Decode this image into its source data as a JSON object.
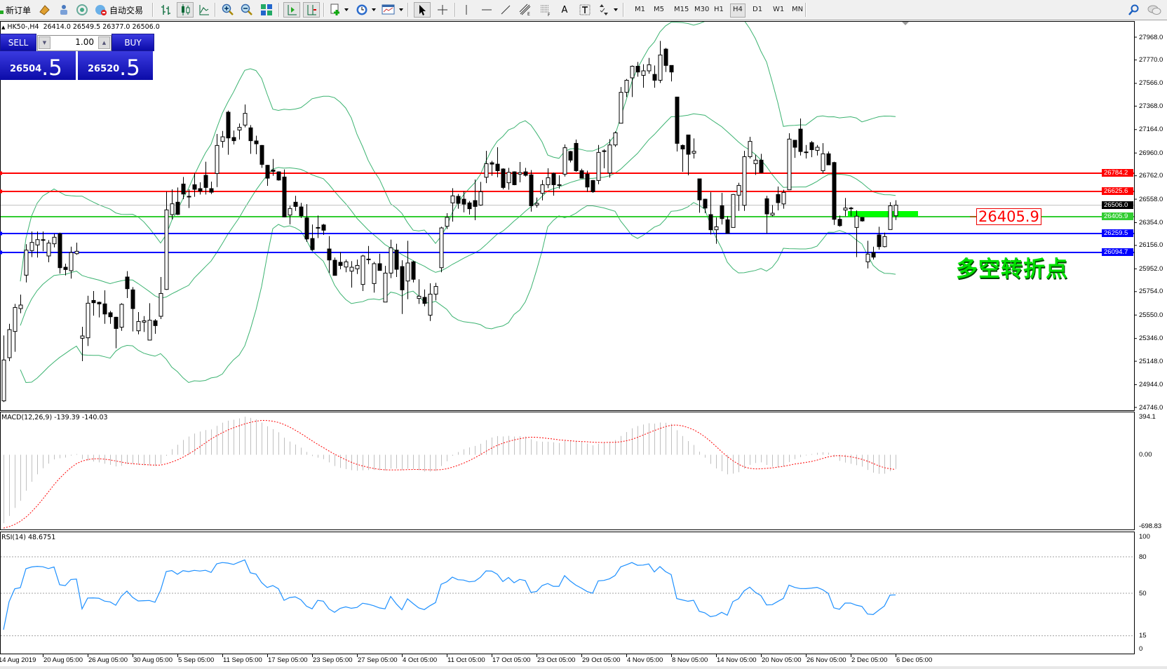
{
  "toolbar": {
    "new_order": "新订单",
    "auto_trading": "自动交易",
    "timeframes": [
      "M1",
      "M5",
      "M15",
      "M30",
      "H1",
      "H4",
      "D1",
      "W1",
      "MN"
    ],
    "active_timeframe": "H4"
  },
  "header": {
    "symbol": "HK50-,H4",
    "ohlc": "26414.0 26549.5 26377.0 26506.0"
  },
  "trade_panel": {
    "sell_label": "SELL",
    "buy_label": "BUY",
    "lot": "1.00",
    "sell_main": "26504",
    "sell_frac": ".5",
    "buy_main": "26520",
    "buy_frac": ".5"
  },
  "annotations": {
    "price_box": "26405.9",
    "note": "多空转折点"
  },
  "colors": {
    "bollinger": "#3cb371",
    "rsi": "#1e90ff",
    "macd_hist": "#c0c0c0",
    "signal": "#ff0000",
    "resistance": "#ff0000",
    "support": "#0000ff",
    "pivot": "#32cd32",
    "panel_blue": "#1414c0"
  },
  "chart_data": {
    "type": "candlestick",
    "title": "",
    "price_ticks": [
      "27968.0",
      "27770.0",
      "27566.0",
      "27368.0",
      "27164.0",
      "26960.0",
      "26762.0",
      "26558.0",
      "26354.0",
      "26156.0",
      "25952.0",
      "25754.0",
      "25550.0",
      "25346.0",
      "25148.0",
      "24944.0",
      "24746.0"
    ],
    "ylim": [
      24746,
      27968
    ],
    "current_price": {
      "value": 26506.0,
      "label": "26506.0"
    },
    "horizontal_lines": [
      {
        "value": 26784.2,
        "label": "26784.2",
        "color": "#ff0000"
      },
      {
        "value": 26625.6,
        "label": "26625.6",
        "color": "#ff0000"
      },
      {
        "value": 26405.9,
        "label": "26405.9",
        "color": "#32cd32"
      },
      {
        "value": 26259.5,
        "label": "26259.5",
        "color": "#0000ff"
      },
      {
        "value": 26094.7,
        "label": "26094.7",
        "color": "#0000ff"
      }
    ],
    "x_labels": [
      "14 Aug 2019",
      "20 Aug 05:00",
      "26 Aug 05:00",
      "30 Aug 05:00",
      "5 Sep 05:00",
      "11 Sep 05:00",
      "17 Sep 05:00",
      "23 Sep 05:00",
      "27 Sep 05:00",
      "4 Oct 05:00",
      "11 Oct 05:00",
      "17 Oct 05:00",
      "23 Oct 05:00",
      "29 Oct 05:00",
      "4 Nov 05:00",
      "8 Nov 05:00",
      "14 Nov 05:00",
      "20 Nov 05:00",
      "26 Nov 05:00",
      "2 Dec 05:00",
      "6 Dec 05:00"
    ],
    "ohlc_fields": [
      "open",
      "high",
      "low",
      "close"
    ],
    "candles": [
      [
        24803,
        25372,
        24793,
        25159
      ],
      [
        25179,
        25474,
        25149,
        25423
      ],
      [
        25407,
        25647,
        25230,
        25616
      ],
      [
        25606,
        25728,
        25566,
        25637
      ],
      [
        25897,
        26166,
        25834,
        26115
      ],
      [
        26111,
        26277,
        26054,
        26182
      ],
      [
        26160,
        26277,
        26050,
        26206
      ],
      [
        26206,
        26277,
        26105,
        26200
      ],
      [
        26064,
        26202,
        26009,
        26176
      ],
      [
        26170,
        26257,
        26139,
        26227
      ],
      [
        26257,
        26267,
        25911,
        25962
      ],
      [
        25966,
        25997,
        25895,
        25946
      ],
      [
        25936,
        26145,
        25867,
        26094
      ],
      [
        26084,
        26180,
        26074,
        26105
      ],
      [
        25348,
        25448,
        25149,
        25368
      ],
      [
        25352,
        25718,
        25281,
        25653
      ],
      [
        25677,
        25759,
        25545,
        25657
      ],
      [
        25661,
        25667,
        25529,
        25647
      ],
      [
        25647,
        25765,
        25474,
        25559
      ],
      [
        25570,
        25586,
        25474,
        25535
      ],
      [
        25531,
        25535,
        25261,
        25433
      ],
      [
        25444,
        25653,
        25413,
        25643
      ],
      [
        25881,
        25932,
        25698,
        25779
      ],
      [
        25769,
        25793,
        25407,
        25606
      ],
      [
        25413,
        25576,
        25382,
        25494
      ],
      [
        25488,
        25541,
        25403,
        25500
      ],
      [
        25332,
        25653,
        25332,
        25505
      ],
      [
        25500,
        25515,
        25387,
        25458
      ],
      [
        25539,
        25881,
        25515,
        25738
      ],
      [
        25773,
        26623,
        25769,
        26465
      ],
      [
        26424,
        26644,
        26383,
        26518
      ],
      [
        26532,
        26660,
        26420,
        26426
      ],
      [
        26690,
        26751,
        26558,
        26603
      ],
      [
        26583,
        26644,
        26481,
        26583
      ],
      [
        26684,
        26786,
        26579,
        26644
      ],
      [
        26650,
        26705,
        26599,
        26629
      ],
      [
        26766,
        26884,
        26599,
        26660
      ],
      [
        26650,
        26711,
        26603,
        26619
      ],
      [
        26782,
        27126,
        26664,
        27026
      ],
      [
        27061,
        27152,
        27006,
        27101
      ],
      [
        27315,
        27329,
        26945,
        27091
      ],
      [
        27095,
        27156,
        27034,
        27067
      ],
      [
        27160,
        27217,
        27077,
        27183
      ],
      [
        27203,
        27382,
        27183,
        27305
      ],
      [
        27179,
        27203,
        26953,
        27067
      ],
      [
        27065,
        27111,
        26949,
        27040
      ],
      [
        27026,
        27030,
        26831,
        26861
      ],
      [
        26853,
        26857,
        26674,
        26741
      ],
      [
        26812,
        26908,
        26762,
        26800
      ],
      [
        26796,
        26800,
        26719,
        26725
      ],
      [
        26751,
        26817,
        26400,
        26404
      ],
      [
        26420,
        26501,
        26339,
        26477
      ],
      [
        26532,
        26587,
        26456,
        26495
      ],
      [
        26491,
        26526,
        26395,
        26414
      ],
      [
        26395,
        26515,
        26186,
        26212
      ],
      [
        26216,
        26338,
        26109,
        26119
      ],
      [
        26312,
        26416,
        26220,
        26312
      ],
      [
        26334,
        26343,
        26247,
        26288
      ],
      [
        26125,
        26237,
        25915,
        26029
      ],
      [
        26027,
        26050,
        25895,
        25895
      ],
      [
        26009,
        26098,
        25948,
        25981
      ],
      [
        25968,
        26033,
        25922,
        26013
      ],
      [
        25932,
        26019,
        25789,
        25966
      ],
      [
        25952,
        26033,
        25907,
        25982
      ],
      [
        25816,
        26074,
        25759,
        26064
      ],
      [
        26037,
        26151,
        25993,
        26037
      ],
      [
        25824,
        26013,
        25745,
        25997
      ],
      [
        25997,
        26084,
        25938,
        25938
      ],
      [
        25663,
        25978,
        25663,
        25915
      ],
      [
        25915,
        26206,
        25871,
        26135
      ],
      [
        26115,
        26170,
        25881,
        25948
      ],
      [
        25972,
        26027,
        25559,
        25769
      ],
      [
        25846,
        26196,
        25688,
        26003
      ],
      [
        26013,
        26023,
        25834,
        25861
      ],
      [
        25694,
        25861,
        25647,
        25714
      ],
      [
        25704,
        25773,
        25627,
        25651
      ],
      [
        25549,
        25826,
        25498,
        25732
      ],
      [
        25732,
        25830,
        25677,
        25799
      ],
      [
        25962,
        26318,
        25922,
        26308
      ],
      [
        26322,
        26436,
        26298,
        26400
      ],
      [
        26526,
        26654,
        26363,
        26587
      ],
      [
        26583,
        26603,
        26475,
        26522
      ],
      [
        26558,
        26627,
        26444,
        26515
      ],
      [
        26526,
        26542,
        26424,
        26475
      ],
      [
        26546,
        26729,
        26375,
        26495
      ],
      [
        26507,
        26709,
        26501,
        26623
      ],
      [
        26749,
        26979,
        26698,
        26867
      ],
      [
        26875,
        26892,
        26762,
        26863
      ],
      [
        26863,
        27010,
        26749,
        26806
      ],
      [
        26821,
        26827,
        26644,
        26660
      ],
      [
        26701,
        26831,
        26640,
        26792
      ],
      [
        26796,
        26800,
        26680,
        26684
      ],
      [
        26776,
        26882,
        26705,
        26790
      ],
      [
        26796,
        26831,
        26755,
        26766
      ],
      [
        26770,
        26812,
        26450,
        26501
      ],
      [
        26507,
        26572,
        26485,
        26522
      ],
      [
        26609,
        26725,
        26548,
        26684
      ],
      [
        26684,
        26827,
        26654,
        26745
      ],
      [
        26782,
        26790,
        26589,
        26684
      ],
      [
        26684,
        26766,
        26650,
        26684
      ],
      [
        26776,
        27034,
        26755,
        27006
      ],
      [
        26973,
        26979,
        26878,
        26898
      ],
      [
        27044,
        27077,
        26796,
        26806
      ],
      [
        26806,
        26823,
        26741,
        26741
      ],
      [
        26776,
        26806,
        26623,
        26664
      ],
      [
        26721,
        26725,
        26613,
        26623
      ],
      [
        26721,
        27030,
        26688,
        26965
      ],
      [
        26979,
        26993,
        26827,
        26979
      ],
      [
        26786,
        27081,
        26745,
        27030
      ],
      [
        27030,
        27148,
        27014,
        27136
      ],
      [
        27219,
        27534,
        27219,
        27488
      ],
      [
        27488,
        27604,
        27447,
        27593
      ],
      [
        27614,
        27722,
        27447,
        27715
      ],
      [
        27715,
        27752,
        27624,
        27665
      ],
      [
        27636,
        27732,
        27528,
        27675
      ],
      [
        27675,
        27787,
        27650,
        27728
      ],
      [
        27644,
        27722,
        27528,
        27593
      ],
      [
        27593,
        27935,
        27569,
        27813
      ],
      [
        27864,
        27874,
        27665,
        27722
      ],
      [
        27722,
        27722,
        27583,
        27665
      ],
      [
        27447,
        27447,
        26973,
        27044
      ],
      [
        27026,
        27034,
        26796,
        26995
      ],
      [
        27117,
        27117,
        26766,
        26949
      ],
      [
        26959,
        27087,
        26912,
        26975
      ],
      [
        26735,
        26735,
        26440,
        26552
      ],
      [
        26558,
        26562,
        26436,
        26481
      ],
      [
        26424,
        26619,
        26251,
        26292
      ],
      [
        26292,
        26399,
        26170,
        26318
      ],
      [
        26501,
        26613,
        26338,
        26389
      ],
      [
        26379,
        26410,
        26261,
        26261
      ],
      [
        26312,
        26603,
        26312,
        26599
      ],
      [
        26593,
        26701,
        26456,
        26678
      ],
      [
        26505,
        26979,
        26456,
        26928
      ],
      [
        26928,
        27101,
        26912,
        27061
      ],
      [
        26867,
        26945,
        26770,
        26898
      ],
      [
        26898,
        26953,
        26786,
        26790
      ],
      [
        26562,
        26587,
        26261,
        26430
      ],
      [
        26420,
        26507,
        26410,
        26436
      ],
      [
        26599,
        26668,
        26461,
        26528
      ],
      [
        26517,
        26640,
        26475,
        26617
      ],
      [
        26640,
        27132,
        26640,
        27081
      ],
      [
        27071,
        27071,
        26918,
        27010
      ],
      [
        27168,
        27260,
        26938,
        26973
      ],
      [
        26969,
        27030,
        26912,
        26969
      ],
      [
        27050,
        27065,
        26924,
        26989
      ],
      [
        26983,
        27030,
        26938,
        27010
      ],
      [
        26806,
        27046,
        26782,
        26953
      ],
      [
        26953,
        26973,
        26857,
        26857
      ],
      [
        26877,
        26884,
        26334,
        26383
      ],
      [
        26383,
        26416,
        26318,
        26328
      ],
      [
        26464,
        26568,
        26410,
        26481
      ],
      [
        26481,
        26491,
        26410,
        26481
      ],
      [
        26312,
        26460,
        26054,
        26410
      ],
      [
        26399,
        26403,
        26363,
        26369
      ],
      [
        26013,
        26196,
        25956,
        26080
      ],
      [
        26094,
        26145,
        26033,
        26054
      ],
      [
        26247,
        26318,
        26119,
        26145
      ],
      [
        26145,
        26267,
        26139,
        26233
      ],
      [
        26294,
        26532,
        26294,
        26501
      ],
      [
        26414,
        26549.5,
        26377,
        26506
      ]
    ],
    "indicators": {
      "bollinger": {
        "period": 20,
        "deviation": 2
      },
      "macd": {
        "label": "MACD(12,26,9) -139.39 -140.03",
        "fast": 12,
        "slow": 26,
        "signal": 9,
        "scale_max": "394.1",
        "scale_zero": "0.00",
        "scale_min": "-698.83",
        "ylim": [
          -698.83,
          394.1
        ]
      },
      "rsi": {
        "label": "RSI(14) 48.6751",
        "period": 14,
        "levels": [
          80,
          50,
          15
        ],
        "scale_labels": [
          "100",
          "80",
          "50",
          "15",
          "0"
        ],
        "ylim": [
          0,
          100
        ]
      }
    }
  }
}
